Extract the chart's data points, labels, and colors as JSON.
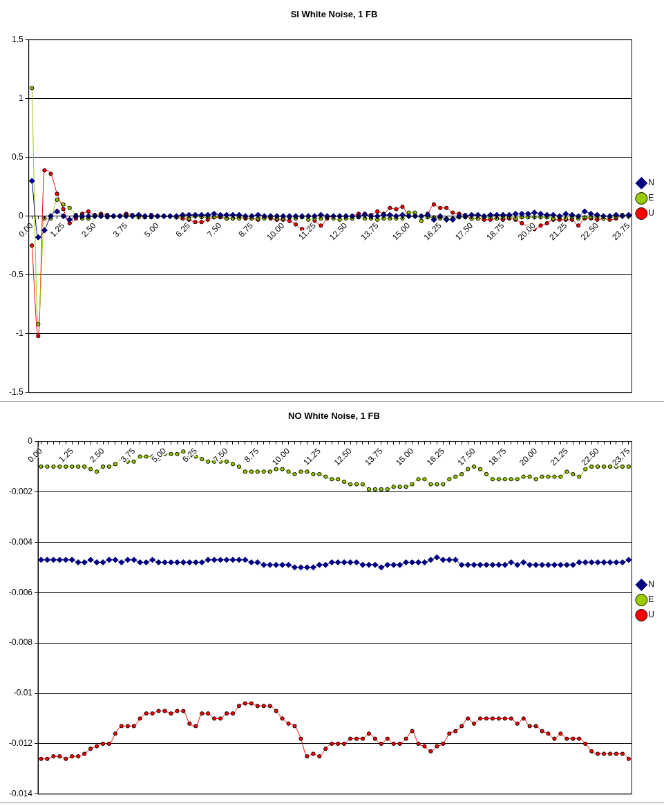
{
  "chart_data": [
    {
      "type": "line",
      "title": "SI White Noise, 1 FB",
      "categories": [
        "0.00",
        null,
        null,
        null,
        null,
        "1.25",
        null,
        null,
        null,
        null,
        "2.50",
        null,
        null,
        null,
        null,
        "3.75",
        null,
        null,
        null,
        null,
        "5.00",
        null,
        null,
        null,
        null,
        "6.25",
        null,
        null,
        null,
        null,
        "7.50",
        null,
        null,
        null,
        null,
        "8.75",
        null,
        null,
        null,
        null,
        "10.00",
        null,
        null,
        null,
        null,
        "11.25",
        null,
        null,
        null,
        null,
        "12.50",
        null,
        null,
        null,
        null,
        "13.75",
        null,
        null,
        null,
        null,
        "15.00",
        null,
        null,
        null,
        null,
        "16.25",
        null,
        null,
        null,
        null,
        "17.50",
        null,
        null,
        null,
        null,
        "18.75",
        null,
        null,
        null,
        null,
        "20.00",
        null,
        null,
        null,
        null,
        "21.25",
        null,
        null,
        null,
        null,
        "22.50",
        null,
        null,
        null,
        null,
        "23.75"
      ],
      "series": [
        {
          "name": "N",
          "color": "#000080",
          "marker": "diamond",
          "values": [
            0.3,
            -0.18,
            -0.12,
            0.0,
            0.04,
            0.0,
            -0.03,
            0.0,
            0.0,
            0.0,
            0.0,
            0.0,
            0.0,
            0.0,
            0.0,
            0.0,
            0.0,
            0.01,
            0.0,
            0.0,
            0.0,
            0.0,
            0.0,
            0.0,
            0.01,
            0.01,
            0.01,
            0.01,
            0.01,
            0.02,
            0.01,
            0.01,
            0.01,
            0.01,
            0.0,
            0.0,
            0.01,
            0.0,
            0.0,
            0.0,
            0.0,
            0.0,
            0.0,
            0.0,
            0.0,
            0.0,
            0.01,
            0.0,
            0.0,
            0.0,
            0.0,
            0.0,
            0.0,
            0.01,
            0.0,
            0.0,
            0.01,
            0.01,
            0.0,
            0.01,
            0.0,
            0.0,
            0.0,
            0.01,
            -0.03,
            0.0,
            -0.03,
            -0.03,
            0.0,
            0.0,
            0.01,
            0.01,
            0.0,
            0.01,
            0.01,
            0.01,
            0.01,
            0.02,
            0.02,
            0.02,
            0.03,
            0.02,
            0.01,
            0.01,
            0.0,
            0.02,
            0.01,
            0.0,
            0.04,
            0.02,
            0.01,
            0.0,
            0.0,
            0.01,
            0.0,
            0.01
          ]
        },
        {
          "name": "E",
          "color": "#99cc00",
          "marker": "circle",
          "values": [
            1.09,
            -0.92,
            -0.02,
            -0.02,
            0.14,
            0.1,
            0.07,
            0.01,
            -0.02,
            -0.02,
            0.01,
            0.01,
            -0.01,
            0.0,
            0.0,
            0.01,
            0.0,
            -0.01,
            0.0,
            -0.01,
            0.0,
            0.0,
            0.0,
            -0.01,
            0.0,
            -0.02,
            0.0,
            -0.01,
            -0.01,
            -0.01,
            0.0,
            -0.02,
            -0.02,
            -0.02,
            -0.01,
            -0.02,
            -0.02,
            -0.02,
            -0.01,
            -0.02,
            -0.02,
            -0.01,
            -0.02,
            -0.01,
            -0.03,
            -0.02,
            -0.02,
            -0.01,
            -0.02,
            -0.03,
            -0.02,
            -0.02,
            -0.01,
            -0.02,
            -0.02,
            -0.03,
            -0.02,
            -0.02,
            -0.02,
            -0.02,
            0.03,
            0.03,
            -0.04,
            -0.01,
            -0.01,
            -0.02,
            -0.02,
            -0.02,
            -0.01,
            -0.01,
            -0.02,
            -0.02,
            -0.01,
            -0.01,
            -0.02,
            -0.01,
            -0.01,
            -0.02,
            -0.01,
            -0.01,
            -0.01,
            -0.01,
            -0.01,
            -0.02,
            -0.01,
            -0.02,
            -0.01,
            -0.02,
            -0.01,
            -0.01,
            -0.01,
            -0.02,
            -0.01,
            -0.01,
            0.01,
            0.0
          ]
        },
        {
          "name": "U",
          "color": "#ff0000",
          "marker": "circle",
          "values": [
            -0.25,
            -1.02,
            0.39,
            0.36,
            0.19,
            0.06,
            -0.06,
            -0.02,
            0.02,
            0.04,
            0.0,
            0.02,
            0.01,
            0.0,
            0.0,
            0.02,
            0.01,
            0.0,
            -0.01,
            0.01,
            0.0,
            0.0,
            0.0,
            -0.01,
            -0.02,
            -0.03,
            -0.05,
            -0.05,
            -0.03,
            -0.01,
            -0.01,
            -0.02,
            -0.02,
            -0.01,
            -0.02,
            -0.02,
            -0.03,
            -0.01,
            -0.02,
            -0.03,
            -0.03,
            -0.04,
            -0.07,
            -0.11,
            -0.1,
            -0.04,
            -0.08,
            -0.02,
            0.0,
            0.0,
            0.0,
            0.0,
            0.02,
            0.02,
            0.01,
            0.04,
            0.02,
            0.07,
            0.06,
            0.08,
            0.0,
            0.0,
            0.0,
            0.02,
            0.1,
            0.07,
            0.07,
            0.03,
            0.02,
            0.01,
            -0.02,
            -0.02,
            -0.03,
            -0.03,
            -0.02,
            -0.03,
            -0.02,
            -0.03,
            -0.06,
            -0.09,
            -0.11,
            -0.08,
            -0.06,
            -0.03,
            -0.03,
            -0.03,
            -0.03,
            -0.08,
            -0.02,
            -0.02,
            -0.03,
            -0.02,
            -0.03,
            -0.02,
            0.01,
            0.0
          ]
        }
      ],
      "ylim": [
        -1.5,
        1.5
      ],
      "yticks": [
        -1.5,
        -1,
        -0.5,
        0,
        0.5,
        1,
        1.5
      ],
      "grid": "y",
      "legend": "right",
      "line_style": "solid"
    },
    {
      "type": "line",
      "title": "NO White Noise, 1 FB",
      "categories": [
        "0.00",
        null,
        null,
        null,
        null,
        "1.25",
        null,
        null,
        null,
        null,
        "2.50",
        null,
        null,
        null,
        null,
        "3.75",
        null,
        null,
        null,
        null,
        "5.00",
        null,
        null,
        null,
        null,
        "6.25",
        null,
        null,
        null,
        null,
        "7.50",
        null,
        null,
        null,
        null,
        "8.75",
        null,
        null,
        null,
        null,
        "10.00",
        null,
        null,
        null,
        null,
        "11.25",
        null,
        null,
        null,
        null,
        "12.50",
        null,
        null,
        null,
        null,
        "13.75",
        null,
        null,
        null,
        null,
        "15.00",
        null,
        null,
        null,
        null,
        "16.25",
        null,
        null,
        null,
        null,
        "17.50",
        null,
        null,
        null,
        null,
        "18.75",
        null,
        null,
        null,
        null,
        "20.00",
        null,
        null,
        null,
        null,
        "21.25",
        null,
        null,
        null,
        null,
        "22.50",
        null,
        null,
        null,
        null,
        "23.75"
      ],
      "series": [
        {
          "name": "N",
          "color": "#000080",
          "marker": "diamond",
          "values": [
            -0.0047,
            -0.0047,
            -0.0047,
            -0.0047,
            -0.0047,
            -0.0047,
            -0.0048,
            -0.0048,
            -0.0047,
            -0.0048,
            -0.0048,
            -0.0047,
            -0.0047,
            -0.0048,
            -0.0047,
            -0.0047,
            -0.0048,
            -0.0048,
            -0.0047,
            -0.0048,
            -0.0048,
            -0.0048,
            -0.0048,
            -0.0048,
            -0.0048,
            -0.0048,
            -0.0048,
            -0.0047,
            -0.0047,
            -0.0047,
            -0.0047,
            -0.0047,
            -0.0047,
            -0.0047,
            -0.0048,
            -0.0048,
            -0.0049,
            -0.0049,
            -0.0049,
            -0.0049,
            -0.0049,
            -0.005,
            -0.005,
            -0.005,
            -0.005,
            -0.0049,
            -0.0049,
            -0.0048,
            -0.0048,
            -0.0048,
            -0.0048,
            -0.0048,
            -0.0049,
            -0.0049,
            -0.0049,
            -0.005,
            -0.0049,
            -0.0049,
            -0.0049,
            -0.0048,
            -0.0048,
            -0.0048,
            -0.0048,
            -0.0047,
            -0.0046,
            -0.0047,
            -0.0047,
            -0.0047,
            -0.0049,
            -0.0049,
            -0.0049,
            -0.0049,
            -0.0049,
            -0.0049,
            -0.0049,
            -0.0049,
            -0.0048,
            -0.0049,
            -0.0048,
            -0.0049,
            -0.0049,
            -0.0049,
            -0.0049,
            -0.0049,
            -0.0049,
            -0.0049,
            -0.0049,
            -0.0048,
            -0.0048,
            -0.0048,
            -0.0048,
            -0.0048,
            -0.0048,
            -0.0048,
            -0.0048,
            -0.0047
          ]
        },
        {
          "name": "E",
          "color": "#99cc00",
          "marker": "circle",
          "values": [
            -0.001,
            -0.001,
            -0.001,
            -0.001,
            -0.001,
            -0.001,
            -0.001,
            -0.001,
            -0.0011,
            -0.0012,
            -0.001,
            -0.001,
            -0.0009,
            -0.0007,
            -0.0008,
            -0.0008,
            -0.0006,
            -0.0006,
            -0.0006,
            -0.0007,
            -0.0005,
            -0.0005,
            -0.0005,
            -0.0004,
            -0.0006,
            -0.0006,
            -0.0007,
            -0.0008,
            -0.0008,
            -0.0008,
            -0.0008,
            -0.0009,
            -0.001,
            -0.0012,
            -0.0012,
            -0.0012,
            -0.0012,
            -0.0012,
            -0.0011,
            -0.0011,
            -0.0012,
            -0.0013,
            -0.0012,
            -0.0012,
            -0.0013,
            -0.0013,
            -0.0014,
            -0.0015,
            -0.0015,
            -0.0016,
            -0.0017,
            -0.0017,
            -0.0017,
            -0.0019,
            -0.0019,
            -0.0019,
            -0.0019,
            -0.0018,
            -0.0018,
            -0.0018,
            -0.0017,
            -0.0015,
            -0.0015,
            -0.0017,
            -0.0017,
            -0.0017,
            -0.0015,
            -0.0014,
            -0.0013,
            -0.0011,
            -0.001,
            -0.0011,
            -0.0013,
            -0.0015,
            -0.0015,
            -0.0015,
            -0.0015,
            -0.0015,
            -0.0014,
            -0.0014,
            -0.0015,
            -0.0014,
            -0.0014,
            -0.0014,
            -0.0014,
            -0.0012,
            -0.0013,
            -0.0014,
            -0.0011,
            -0.001,
            -0.001,
            -0.001,
            -0.001,
            -0.001,
            -0.001,
            -0.001
          ]
        },
        {
          "name": "U",
          "color": "#ff0000",
          "marker": "circle",
          "values": [
            -0.0126,
            -0.0126,
            -0.0125,
            -0.0125,
            -0.0126,
            -0.0125,
            -0.0125,
            -0.0124,
            -0.0122,
            -0.0121,
            -0.012,
            -0.012,
            -0.0116,
            -0.0113,
            -0.0113,
            -0.0113,
            -0.011,
            -0.0108,
            -0.0108,
            -0.0107,
            -0.0107,
            -0.0108,
            -0.0107,
            -0.0107,
            -0.0112,
            -0.0113,
            -0.0108,
            -0.0108,
            -0.011,
            -0.011,
            -0.0108,
            -0.0108,
            -0.0105,
            -0.0104,
            -0.0104,
            -0.0105,
            -0.0105,
            -0.0105,
            -0.0107,
            -0.011,
            -0.0112,
            -0.0113,
            -0.0118,
            -0.0125,
            -0.0124,
            -0.0125,
            -0.0122,
            -0.012,
            -0.012,
            -0.012,
            -0.0118,
            -0.0118,
            -0.0118,
            -0.0116,
            -0.0118,
            -0.012,
            -0.0118,
            -0.012,
            -0.012,
            -0.0118,
            -0.0115,
            -0.012,
            -0.0121,
            -0.0123,
            -0.0121,
            -0.012,
            -0.0116,
            -0.0115,
            -0.0113,
            -0.011,
            -0.0112,
            -0.011,
            -0.011,
            -0.011,
            -0.011,
            -0.011,
            -0.011,
            -0.0112,
            -0.011,
            -0.0113,
            -0.0113,
            -0.0115,
            -0.0116,
            -0.0118,
            -0.0116,
            -0.0118,
            -0.0118,
            -0.0118,
            -0.012,
            -0.0123,
            -0.0124,
            -0.0124,
            -0.0124,
            -0.0124,
            -0.0124,
            -0.0126
          ]
        }
      ],
      "ylim": [
        -0.014,
        0
      ],
      "yticks": [
        -0.014,
        -0.012,
        -0.01,
        -0.008,
        -0.006,
        -0.004,
        -0.002,
        0
      ],
      "grid": "y",
      "legend": "right",
      "line_style": "solid"
    }
  ]
}
